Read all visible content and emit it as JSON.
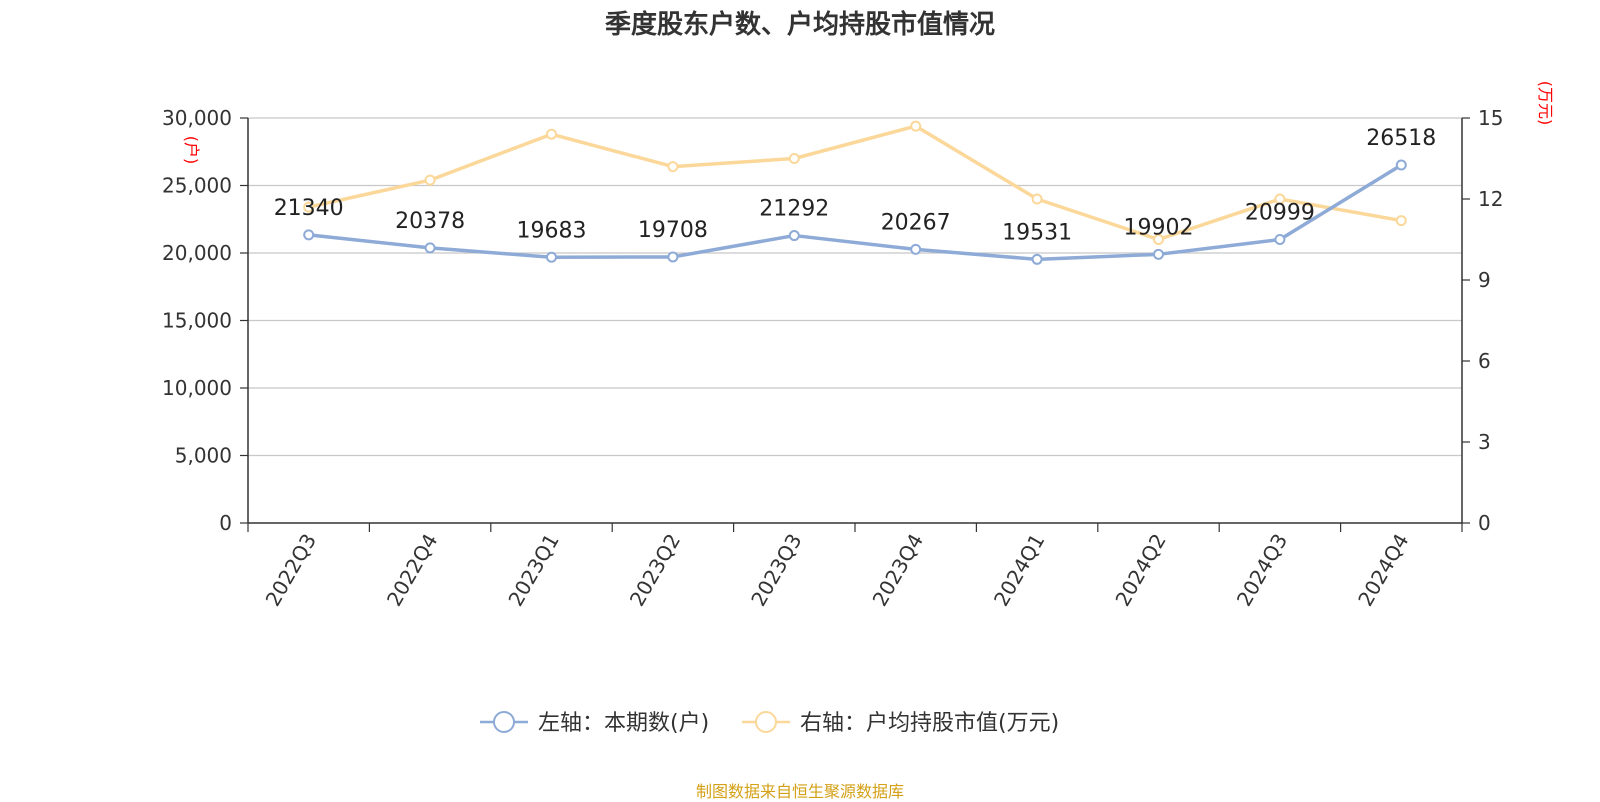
{
  "chart_data": {
    "type": "line",
    "title": "季度股东户数、户均持股市值情况",
    "categories": [
      "2022Q3",
      "2022Q4",
      "2023Q1",
      "2023Q2",
      "2023Q3",
      "2023Q4",
      "2024Q1",
      "2024Q2",
      "2024Q3",
      "2024Q4"
    ],
    "series": [
      {
        "name": "左轴：本期数(户)",
        "axis": "left",
        "color": "#8eaad6",
        "values": [
          21340,
          20378,
          19683,
          19708,
          21292,
          20267,
          19531,
          19902,
          20999,
          26518
        ],
        "labels": [
          "21340",
          "20378",
          "19683",
          "19708",
          "21292",
          "20267",
          "19531",
          "19902",
          "20999",
          "26518"
        ]
      },
      {
        "name": "右轴：户均持股市值(万元)",
        "axis": "right",
        "color": "#fbd89a",
        "values": [
          11.7,
          12.7,
          14.4,
          13.2,
          13.5,
          14.7,
          12.0,
          10.5,
          12.0,
          11.2
        ]
      }
    ],
    "left_axis": {
      "unit": "(户)",
      "ylim": [
        0,
        30000
      ],
      "ticks": [
        0,
        5000,
        10000,
        15000,
        20000,
        25000,
        30000
      ],
      "tick_labels": [
        "0",
        "5,000",
        "10,000",
        "15,000",
        "20,000",
        "25,000",
        "30,000"
      ]
    },
    "right_axis": {
      "unit": "(万元)",
      "ylim": [
        0,
        15
      ],
      "ticks": [
        0,
        3,
        6,
        9,
        12,
        15
      ],
      "tick_labels": [
        "0",
        "3",
        "6",
        "9",
        "12",
        "15"
      ]
    },
    "grid": true,
    "legend_position": "bottom-center"
  },
  "source_text": "制图数据来自恒生聚源数据库"
}
